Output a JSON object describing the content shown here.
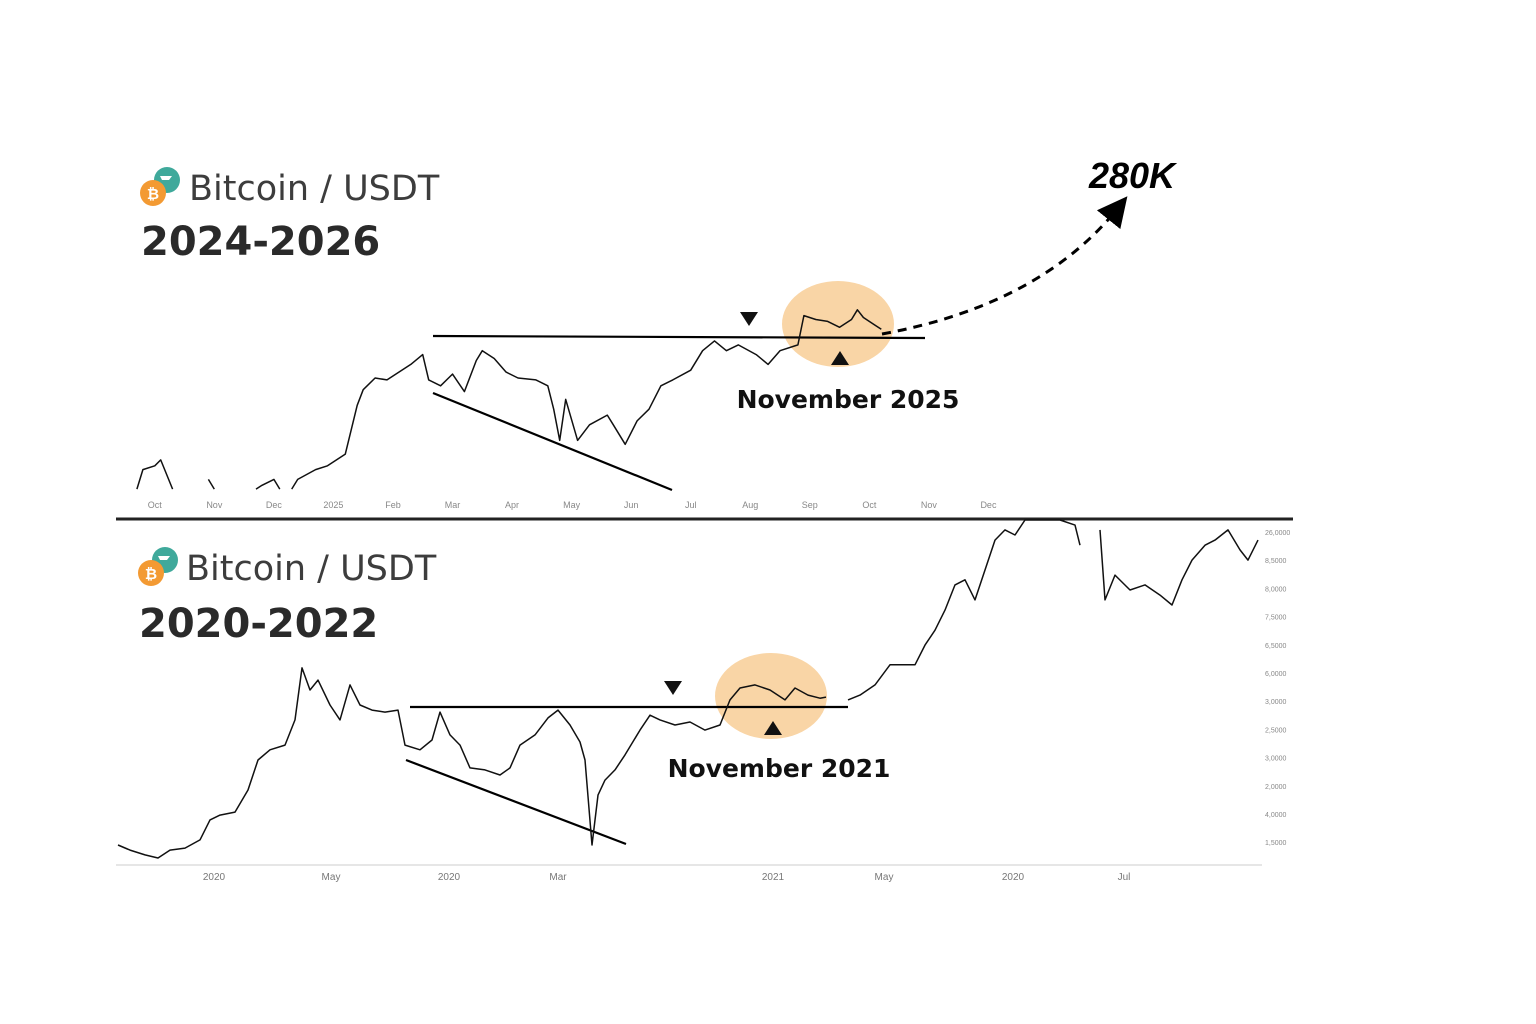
{
  "chart_data": [
    {
      "type": "line",
      "title": "Bitcoin / USDT",
      "subtitle": "2024-2026",
      "annotations": [
        "280K",
        "November 2025"
      ],
      "xlim": [
        -0.5,
        15
      ],
      "ylim": [
        0,
        100
      ],
      "xticks": [
        {
          "value": 0,
          "label": "Oct"
        },
        {
          "value": 1,
          "label": "Nov"
        },
        {
          "value": 2,
          "label": "Dec"
        },
        {
          "value": 3,
          "label": "2025"
        },
        {
          "value": 4,
          "label": "Feb"
        },
        {
          "value": 5,
          "label": "Mar"
        },
        {
          "value": 6,
          "label": "Apr"
        },
        {
          "value": 7,
          "label": "May"
        },
        {
          "value": 8,
          "label": "Jun"
        },
        {
          "value": 9,
          "label": "Jul"
        },
        {
          "value": 10,
          "label": "Aug"
        },
        {
          "value": 11,
          "label": "Sep"
        },
        {
          "value": 12,
          "label": "Oct"
        },
        {
          "value": 13,
          "label": "Nov"
        },
        {
          "value": 14,
          "label": "Dec"
        }
      ],
      "x": [
        -0.3,
        -0.2,
        0,
        0.1,
        0.3,
        0.6,
        0.9,
        1.0,
        1.4,
        1.7,
        1.8,
        2.0,
        2.1,
        2.2,
        2.3,
        2.4,
        2.7,
        2.9,
        3.2,
        3.4,
        3.5,
        3.7,
        3.9,
        4.1,
        4.3,
        4.5,
        4.6,
        4.8,
        5.0,
        5.2,
        5.4,
        5.5,
        5.7,
        5.9,
        6.1,
        6.4,
        6.6,
        6.7,
        6.8,
        6.9,
        7.1,
        7.3,
        7.6,
        7.7,
        7.9,
        8.1,
        8.3,
        8.5,
        8.7,
        9.0,
        9.2,
        9.4,
        9.6,
        9.8,
        10.1,
        10.3,
        10.5,
        10.8,
        10.9,
        11.1,
        11.3,
        11.5,
        11.7,
        11.8,
        11.9,
        12.1,
        12.2
      ],
      "series": [
        {
          "color": "#111111",
          "values": [
            3,
            13,
            15,
            18,
            3,
            null,
            8,
            3,
            null,
            3,
            5,
            8,
            3,
            null,
            3,
            8,
            13,
            15,
            21,
            46,
            54,
            60,
            59,
            63,
            67,
            72,
            59,
            56,
            62,
            53,
            69,
            74,
            70,
            63,
            60,
            59,
            56,
            44,
            28,
            49,
            28,
            36,
            41,
            36,
            26,
            38,
            44,
            56,
            59,
            64,
            74,
            79,
            74,
            77,
            72,
            67,
            74,
            77,
            92,
            90,
            89,
            86,
            90,
            95,
            91,
            87,
            85
          ]
        }
      ]
    },
    {
      "type": "line",
      "title": "Bitcoin / USDT",
      "subtitle": "2020-2022",
      "annotations": [
        "November 2021"
      ],
      "xlim": [
        0,
        114
      ],
      "ylim": [
        0,
        100
      ],
      "xticks": [
        {
          "value": 9.6,
          "label": "2020"
        },
        {
          "value": 21.3,
          "label": "May"
        },
        {
          "value": 33.1,
          "label": "2020"
        },
        {
          "value": 44,
          "label": "Mar"
        },
        {
          "value": 65.5,
          "label": "2021"
        },
        {
          "value": 76.6,
          "label": "May"
        },
        {
          "value": 89.5,
          "label": "2020"
        },
        {
          "value": 100.6,
          "label": "Jul"
        }
      ],
      "y_axis_labels": [
        "26,0000",
        "8,5000",
        "8,0000",
        "7,5000",
        "6,5000",
        "6,0000",
        "3,0000",
        "2,5000",
        "3,0000",
        "2,0000",
        "4,0000",
        "1,5000"
      ],
      "x": [
        0,
        1.2,
        2.7,
        4,
        5.2,
        6.7,
        8.2,
        9.2,
        10.2,
        11.7,
        13,
        14,
        15.2,
        16.7,
        17.7,
        18.4,
        19.2,
        20,
        21.2,
        22.2,
        23.2,
        24.2,
        25.4,
        26.7,
        28,
        28.7,
        30.2,
        31.4,
        32.2,
        33.2,
        34.2,
        35.2,
        36.7,
        38.2,
        39.2,
        40.2,
        41.7,
        43,
        44,
        45.2,
        46.2,
        46.7,
        47.4,
        48,
        48.7,
        49.7,
        50.7,
        52.2,
        53.2,
        54.2,
        55.7,
        57.2,
        58.7,
        60.2,
        61.2,
        62.2,
        63.7,
        65.2,
        66.7,
        67.7,
        69,
        70.2,
        70.8,
        72,
        73,
        74.2,
        75.7,
        77.2,
        78.7,
        79.7,
        80.7,
        81.7,
        82.7,
        83.7,
        84.7,
        85.7,
        86.7,
        87.7,
        88.7,
        89.7,
        90.7,
        92.2,
        94.2,
        95.7,
        96.2,
        97.5,
        98.2,
        98.7,
        99.7,
        101.2,
        102.7,
        104.2,
        105.4,
        106.4,
        107.4,
        108.7,
        109.7,
        111,
        112.2,
        113,
        114
      ],
      "series": [
        {
          "color": "#111111",
          "values": [
            4.4,
            2.9,
            1.5,
            0.6,
            2.9,
            3.5,
            5.9,
            11.8,
            13.2,
            14.1,
            20.6,
            29.4,
            32.4,
            33.8,
            41.2,
            56.5,
            50,
            52.9,
            45.6,
            41.2,
            51.5,
            45.6,
            44.1,
            43.5,
            44.1,
            33.8,
            32.4,
            35.3,
            43.5,
            36.8,
            33.8,
            27.1,
            26.5,
            25,
            27.1,
            33.8,
            36.8,
            41.8,
            44.1,
            39.7,
            34.7,
            29.4,
            4.4,
            19.1,
            23.5,
            26.5,
            30.9,
            38.2,
            42.6,
            41.2,
            39.7,
            40.6,
            38.2,
            39.7,
            47.1,
            50.6,
            51.5,
            50,
            47.1,
            50.6,
            48.5,
            47.6,
            47.9,
            null,
            47.1,
            48.5,
            51.5,
            57.4,
            57.4,
            57.4,
            63.2,
            67.6,
            73.5,
            80.9,
            82.4,
            76.5,
            85.3,
            94.1,
            97.1,
            95.6,
            100,
            100,
            100,
            98.5,
            92.6,
            null,
            97.1,
            76.5,
            83.8,
            79.4,
            80.9,
            77.9,
            75,
            82.4,
            88.2,
            92.6,
            94.1,
            97.1,
            91.2,
            88.2,
            94.1
          ]
        }
      ]
    }
  ]
}
